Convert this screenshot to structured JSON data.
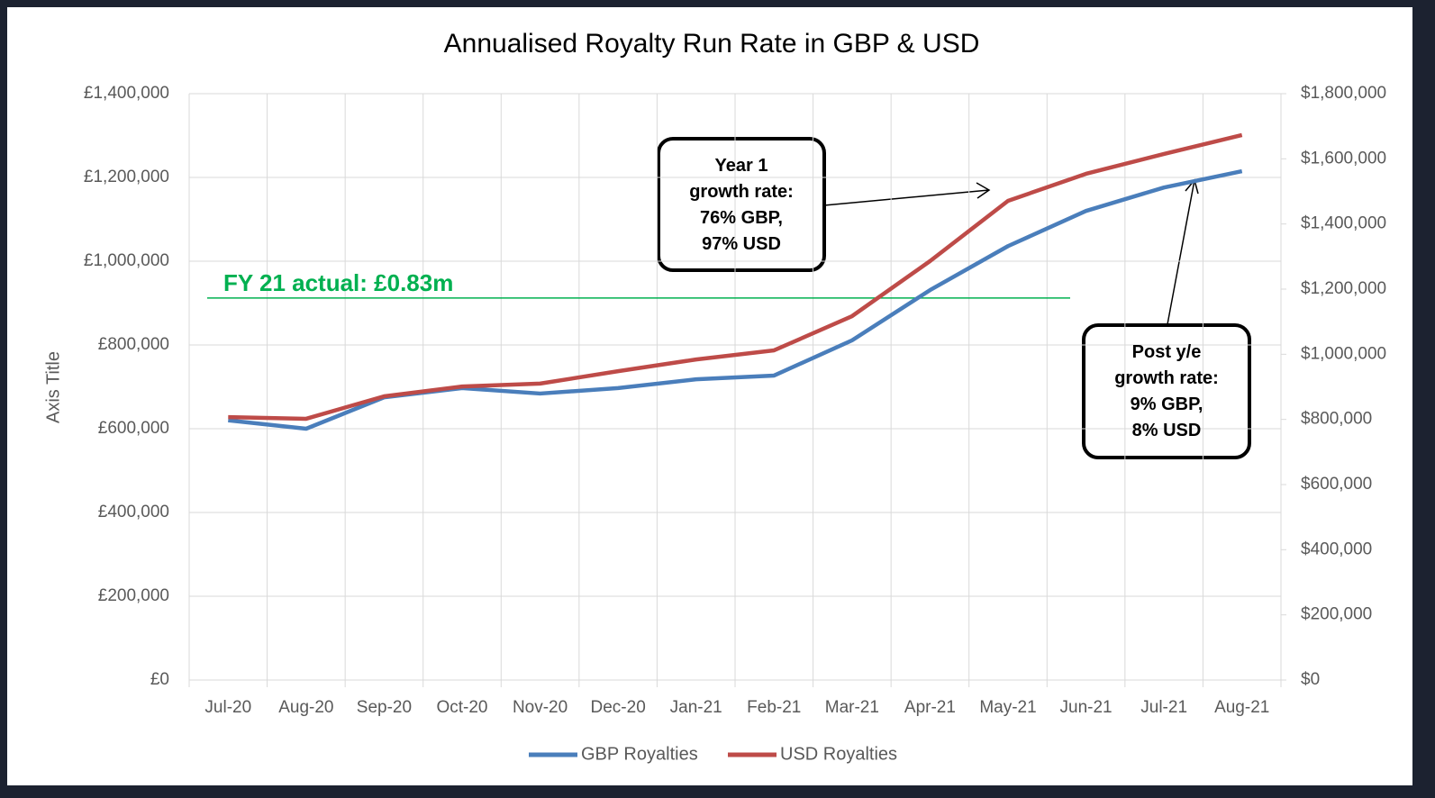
{
  "chart_data": {
    "type": "line",
    "title": "Annualised Royalty Run Rate in GBP & USD",
    "y_axis_label": "Axis Title",
    "categories": [
      "Jul-20",
      "Aug-20",
      "Sep-20",
      "Oct-20",
      "Nov-20",
      "Dec-20",
      "Jan-21",
      "Feb-21",
      "Mar-21",
      "Apr-21",
      "May-21",
      "Jun-21",
      "Jul-21",
      "Aug-21"
    ],
    "series": [
      {
        "name": "GBP Royalties",
        "color": "#4a7ebb",
        "axis": "y",
        "values": [
          620000,
          600000,
          675000,
          697000,
          684000,
          697000,
          718000,
          727000,
          811000,
          931000,
          1036000,
          1120000,
          1176000,
          1215000
        ]
      },
      {
        "name": "USD Royalties",
        "color": "#be4b48",
        "axis": "y2",
        "values": [
          807000,
          802000,
          871000,
          901000,
          910000,
          948000,
          984000,
          1012000,
          1117000,
          1286000,
          1471000,
          1554000,
          1615000,
          1673000
        ]
      }
    ],
    "ylim": [
      0,
      1400000
    ],
    "yticks": [
      {
        "value": 0,
        "label": "£0"
      },
      {
        "value": 200000,
        "label": "£200,000"
      },
      {
        "value": 400000,
        "label": "£400,000"
      },
      {
        "value": 600000,
        "label": "£600,000"
      },
      {
        "value": 800000,
        "label": "£800,000"
      },
      {
        "value": 1000000,
        "label": "£1,000,000"
      },
      {
        "value": 1200000,
        "label": "£1,200,000"
      },
      {
        "value": 1400000,
        "label": "£1,400,000"
      }
    ],
    "y2lim": [
      0,
      1800000
    ],
    "y2ticks": [
      {
        "value": 0,
        "label": "$0"
      },
      {
        "value": 200000,
        "label": "$200,000"
      },
      {
        "value": 400000,
        "label": "$400,000"
      },
      {
        "value": 600000,
        "label": "$600,000"
      },
      {
        "value": 800000,
        "label": "$800,000"
      },
      {
        "value": 1000000,
        "label": "$1,000,000"
      },
      {
        "value": 1200000,
        "label": "$1,200,000"
      },
      {
        "value": 1400000,
        "label": "$1,400,000"
      },
      {
        "value": 1600000,
        "label": "$1,600,000"
      },
      {
        "value": 1800000,
        "label": "$1,800,000"
      }
    ],
    "grid": true,
    "legend": "bottom",
    "reference_line": {
      "value": 912000,
      "label": "FY 21 actual: £0.83m",
      "color": "#00b050"
    },
    "callouts": [
      {
        "lines": [
          "Year 1",
          "growth rate:",
          "76% GBP,",
          "97% USD"
        ]
      },
      {
        "lines": [
          "Post y/e",
          "growth rate:",
          "9% GBP,",
          "8% USD"
        ]
      }
    ]
  }
}
